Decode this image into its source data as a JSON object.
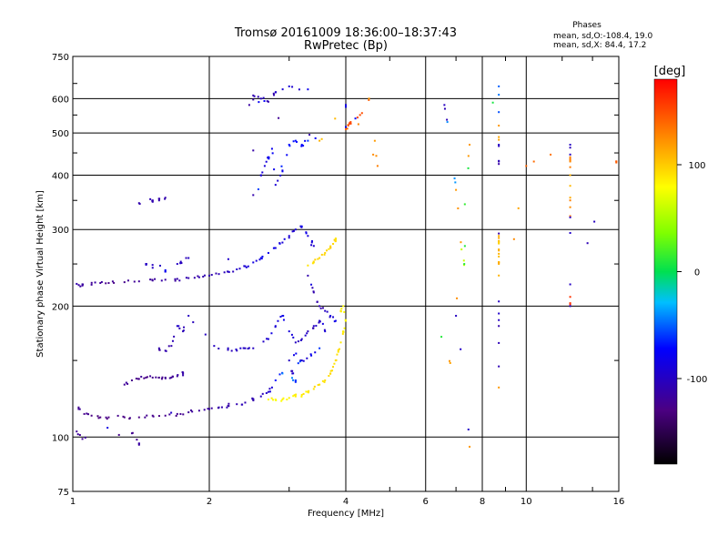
{
  "chart_data": {
    "type": "scatter",
    "title": "Tromsø 20161009 18:36:00–18:37:43",
    "subtitle": "RwPretec (Bp)",
    "xlabel": "Frequency [MHz]",
    "ylabel": "Stationary phase Virtual Height [km]",
    "x_scale": "log",
    "y_scale": "log",
    "xlim": [
      1,
      16
    ],
    "ylim": [
      75,
      750
    ],
    "x_ticks": [
      1,
      2,
      4,
      6,
      8,
      10,
      16
    ],
    "x_tick_labels": [
      "1",
      "2",
      "4",
      "6",
      "8",
      "10",
      "16"
    ],
    "y_ticks": [
      75,
      100,
      200,
      300,
      400,
      500,
      600,
      750
    ],
    "y_tick_labels": [
      "75",
      "100",
      "200",
      "300",
      "400",
      "500",
      "600",
      "750"
    ],
    "grid": true,
    "stats": {
      "heading": "Phases",
      "line1": "mean, sd,O:-108.4, 19.0",
      "line2": "mean, sd,X:  84.4, 17.2"
    },
    "colorbar": {
      "label": "[deg]",
      "range": [
        -180,
        180
      ],
      "ticks": [
        100,
        0,
        -100
      ],
      "tick_labels": [
        "100",
        "0",
        "-100"
      ]
    },
    "colors": {
      "grid": "#000000",
      "background": "#ffffff"
    },
    "series": [
      {
        "description": "low trace",
        "points": [
          [
            1.03,
            116,
            -120
          ],
          [
            1.06,
            113,
            -125
          ],
          [
            1.1,
            112,
            -128
          ],
          [
            1.15,
            111,
            -130
          ],
          [
            1.2,
            111,
            -130
          ],
          [
            1.3,
            111,
            -128
          ],
          [
            1.4,
            111,
            -128
          ],
          [
            1.5,
            112,
            -125
          ],
          [
            1.6,
            112,
            -125
          ],
          [
            1.7,
            113,
            -122
          ],
          [
            1.8,
            114,
            -120
          ],
          [
            1.9,
            115,
            -118
          ],
          [
            2.0,
            116,
            -115
          ],
          [
            2.1,
            117,
            -112
          ],
          [
            2.2,
            118,
            -110
          ],
          [
            2.3,
            119,
            -108
          ],
          [
            2.4,
            120,
            -108
          ],
          [
            2.5,
            122,
            -105
          ],
          [
            2.6,
            124,
            -100
          ],
          [
            2.7,
            127,
            -95
          ],
          [
            2.75,
            130,
            -90
          ],
          [
            1.02,
            103,
            -120
          ],
          [
            1.05,
            99,
            -120
          ],
          [
            1.35,
            102,
            -120
          ],
          [
            1.4,
            96,
            -115
          ]
        ]
      },
      {
        "description": "E2 trace",
        "points": [
          [
            1.3,
            132,
            -120
          ],
          [
            1.35,
            135,
            -125
          ],
          [
            1.4,
            136,
            -125
          ],
          [
            1.45,
            137,
            -125
          ],
          [
            1.5,
            137,
            -125
          ],
          [
            1.55,
            137,
            -125
          ],
          [
            1.6,
            137,
            -122
          ],
          [
            1.65,
            137,
            -120
          ],
          [
            1.7,
            138,
            -118
          ],
          [
            1.75,
            140,
            -115
          ]
        ]
      },
      {
        "description": "mid scatter",
        "points": [
          [
            1.55,
            160,
            -110
          ],
          [
            1.6,
            158,
            -110
          ],
          [
            1.65,
            162,
            -110
          ],
          [
            1.7,
            180,
            -100
          ],
          [
            1.75,
            175,
            -105
          ],
          [
            1.8,
            190,
            -100
          ],
          [
            2.05,
            162,
            -100
          ],
          [
            2.2,
            160,
            -100
          ],
          [
            2.3,
            158,
            -100
          ],
          [
            2.4,
            160,
            -100
          ],
          [
            2.5,
            160,
            -100
          ],
          [
            2.7,
            168,
            -90
          ],
          [
            2.8,
            180,
            -90
          ],
          [
            2.9,
            190,
            -85
          ],
          [
            3.0,
            175,
            -90
          ],
          [
            3.1,
            165,
            -100
          ],
          [
            3.2,
            168,
            -100
          ],
          [
            3.3,
            175,
            -105
          ],
          [
            3.4,
            180,
            -100
          ],
          [
            3.5,
            185,
            -95
          ],
          [
            3.6,
            175,
            -90
          ],
          [
            3.3,
            235,
            -110
          ],
          [
            3.4,
            215,
            -110
          ],
          [
            3.5,
            200,
            -110
          ],
          [
            3.6,
            195,
            -100
          ],
          [
            3.7,
            190,
            -90
          ],
          [
            3.8,
            185,
            -80
          ],
          [
            3.0,
            150,
            -100
          ],
          [
            3.05,
            140,
            -100
          ],
          [
            3.2,
            150,
            -90
          ],
          [
            3.35,
            155,
            -80
          ],
          [
            3.5,
            160,
            -60
          ],
          [
            2.8,
            135,
            -70
          ],
          [
            2.9,
            140,
            -40
          ],
          [
            3.1,
            135,
            -60
          ]
        ]
      },
      {
        "description": "F low trace",
        "points": [
          [
            1.02,
            225,
            -110
          ],
          [
            1.05,
            223,
            -115
          ],
          [
            1.1,
            224,
            -118
          ],
          [
            1.15,
            226,
            -120
          ],
          [
            1.2,
            226,
            -125
          ],
          [
            1.3,
            227,
            -125
          ],
          [
            1.4,
            228,
            -120
          ],
          [
            1.5,
            229,
            -118
          ],
          [
            1.6,
            230,
            -115
          ],
          [
            1.7,
            231,
            -112
          ],
          [
            1.8,
            232,
            -110
          ],
          [
            1.9,
            233,
            -108
          ],
          [
            2.0,
            235,
            -108
          ],
          [
            2.1,
            237,
            -105
          ],
          [
            2.2,
            240,
            -100
          ],
          [
            2.3,
            243,
            -95
          ],
          [
            2.4,
            247,
            -90
          ],
          [
            2.5,
            252,
            -85
          ],
          [
            2.6,
            258,
            -80
          ],
          [
            2.7,
            265,
            -80
          ],
          [
            2.8,
            272,
            -85
          ],
          [
            2.9,
            280,
            -90
          ],
          [
            3.0,
            290,
            -90
          ],
          [
            3.1,
            300,
            -90
          ],
          [
            3.2,
            305,
            -80
          ],
          [
            3.3,
            290,
            -90
          ],
          [
            3.4,
            275,
            -95
          ],
          [
            1.5,
            245,
            -100
          ],
          [
            1.45,
            250,
            -100
          ],
          [
            1.7,
            250,
            -100
          ],
          [
            1.8,
            258,
            -100
          ],
          [
            1.6,
            240,
            -80
          ]
        ]
      },
      {
        "description": "X low trace",
        "points": [
          [
            2.7,
            122,
            80
          ],
          [
            2.8,
            122,
            82
          ],
          [
            2.9,
            122,
            84
          ],
          [
            3.0,
            123,
            85
          ],
          [
            3.1,
            124,
            86
          ],
          [
            3.2,
            125,
            87
          ],
          [
            3.3,
            127,
            88
          ],
          [
            3.4,
            129,
            90
          ],
          [
            3.5,
            132,
            92
          ],
          [
            3.6,
            135,
            93
          ],
          [
            3.7,
            140,
            95
          ],
          [
            3.75,
            145,
            95
          ],
          [
            3.8,
            150,
            92
          ],
          [
            3.85,
            157,
            90
          ],
          [
            3.9,
            165,
            88
          ],
          [
            3.95,
            175,
            85
          ],
          [
            4.0,
            185,
            84
          ],
          [
            3.95,
            200,
            80
          ],
          [
            3.9,
            195,
            84
          ]
        ]
      },
      {
        "description": "X F trace",
        "points": [
          [
            3.3,
            248,
            90
          ],
          [
            3.4,
            252,
            92
          ],
          [
            3.5,
            258,
            95
          ],
          [
            3.6,
            265,
            96
          ],
          [
            3.7,
            272,
            96
          ],
          [
            3.75,
            278,
            95
          ],
          [
            3.8,
            285,
            94
          ]
        ]
      },
      {
        "description": "upper scatter",
        "points": [
          [
            2.6,
            400,
            -90
          ],
          [
            2.65,
            420,
            -90
          ],
          [
            2.7,
            440,
            -80
          ],
          [
            2.75,
            460,
            -80
          ],
          [
            2.8,
            380,
            -90
          ],
          [
            2.9,
            410,
            -80
          ],
          [
            3.0,
            470,
            -70
          ],
          [
            3.1,
            480,
            -70
          ],
          [
            3.2,
            470,
            -70
          ],
          [
            3.3,
            480,
            -60
          ],
          [
            2.5,
            360,
            -110
          ],
          [
            2.5,
            610,
            -110
          ],
          [
            2.6,
            600,
            -100
          ],
          [
            2.7,
            590,
            -110
          ],
          [
            2.8,
            620,
            -90
          ],
          [
            3.0,
            640,
            -90
          ],
          [
            3.3,
            630,
            -80
          ],
          [
            2.45,
            580,
            -115
          ],
          [
            3.5,
            480,
            110
          ],
          [
            4.0,
            580,
            -85
          ],
          [
            4.0,
            510,
            140
          ],
          [
            4.05,
            520,
            150
          ],
          [
            4.1,
            530,
            150
          ],
          [
            4.3,
            550,
            150
          ],
          [
            4.5,
            600,
            120
          ],
          [
            4.7,
            420,
            130
          ],
          [
            4.2,
            540,
            -70
          ],
          [
            1.55,
            350,
            -110
          ],
          [
            1.6,
            355,
            -110
          ],
          [
            1.4,
            345,
            -110
          ],
          [
            1.5,
            350,
            -110
          ]
        ]
      },
      {
        "description": "high frequency scatter",
        "points": [
          [
            6.6,
            580,
            -100
          ],
          [
            6.7,
            530,
            -40
          ],
          [
            7.0,
            370,
            120
          ],
          [
            7.2,
            270,
            60
          ],
          [
            7.3,
            250,
            10
          ],
          [
            7.5,
            470,
            120
          ],
          [
            7.0,
            190,
            -100
          ],
          [
            7.5,
            95,
            120
          ],
          [
            6.5,
            170,
            10
          ],
          [
            8.7,
            640,
            -50
          ],
          [
            8.7,
            520,
            120
          ],
          [
            8.7,
            470,
            -100
          ],
          [
            8.7,
            430,
            -110
          ],
          [
            8.7,
            290,
            110
          ],
          [
            8.7,
            280,
            100
          ],
          [
            8.7,
            270,
            110
          ],
          [
            8.7,
            260,
            105
          ],
          [
            8.7,
            250,
            110
          ],
          [
            8.7,
            205,
            -100
          ],
          [
            8.7,
            180,
            -110
          ],
          [
            8.7,
            130,
            120
          ],
          [
            10.0,
            420,
            140
          ],
          [
            12.5,
            470,
            -100
          ],
          [
            12.5,
            440,
            130
          ],
          [
            12.5,
            430,
            125
          ],
          [
            12.5,
            400,
            110
          ],
          [
            12.5,
            350,
            130
          ],
          [
            12.5,
            320,
            -100
          ],
          [
            12.5,
            210,
            160
          ],
          [
            12.5,
            200,
            -100
          ],
          [
            15.8,
            430,
            140
          ]
        ]
      }
    ]
  }
}
